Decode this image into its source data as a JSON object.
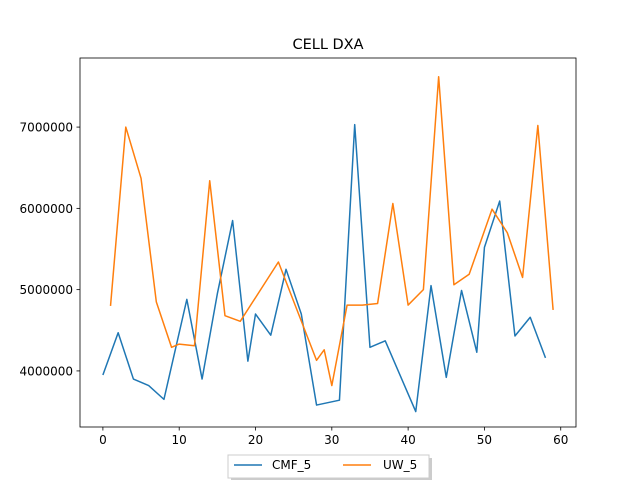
{
  "chart_data": {
    "type": "line",
    "title": "CELL DXA",
    "xlabel": "",
    "ylabel": "",
    "xlim": [
      -3.0,
      62.0
    ],
    "ylim": [
      3310000,
      7850000
    ],
    "x_ticks": [
      0,
      10,
      20,
      30,
      40,
      50,
      60
    ],
    "y_ticks": [
      4000000,
      5000000,
      6000000,
      7000000
    ],
    "grid": false,
    "legend_placement": "bottom-center",
    "series": [
      {
        "name": "CMF_5",
        "color": "#1f77b4",
        "x": [
          0,
          2,
          4,
          6,
          8,
          11,
          13,
          15,
          17,
          19,
          20,
          22,
          24,
          26,
          28,
          31,
          33,
          35,
          37,
          41,
          43,
          45,
          47,
          49,
          50,
          52,
          54,
          56,
          58
        ],
        "y": [
          3950000,
          4470000,
          3900000,
          3820000,
          3650000,
          4880000,
          3900000,
          4950000,
          5850000,
          4120000,
          4700000,
          4440000,
          5250000,
          4700000,
          3580000,
          3640000,
          7030000,
          4290000,
          4370000,
          3500000,
          5050000,
          3920000,
          4990000,
          4230000,
          5520000,
          6090000,
          4430000,
          4660000,
          4160000
        ]
      },
      {
        "name": "UW_5",
        "color": "#ff7f0e",
        "x": [
          1,
          3,
          5,
          7,
          9,
          10,
          12,
          14,
          16,
          18,
          23,
          28,
          29,
          30,
          32,
          34,
          36,
          38,
          40,
          42,
          44,
          46,
          48,
          51,
          53,
          55,
          57,
          59
        ],
        "y": [
          4800000,
          7000000,
          6370000,
          4850000,
          4290000,
          4330000,
          4310000,
          6340000,
          4680000,
          4610000,
          5340000,
          4130000,
          4260000,
          3820000,
          4810000,
          4810000,
          4830000,
          6060000,
          4810000,
          5000000,
          7620000,
          5060000,
          5190000,
          5990000,
          5700000,
          5150000,
          7020000,
          4750000
        ]
      }
    ]
  }
}
